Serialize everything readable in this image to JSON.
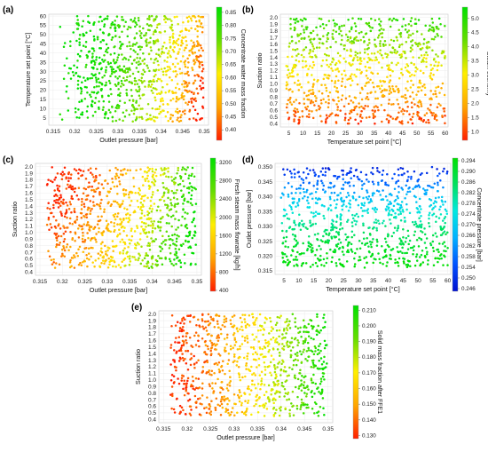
{
  "chart_data": [
    {
      "panel": "(a)",
      "type": "scatter",
      "xlabel": "Outlet pressure [bar]",
      "ylabel": "Temperature set point [°C]",
      "xlim": [
        0.314,
        0.351
      ],
      "ylim": [
        1,
        61
      ],
      "xticks": [
        "0.315",
        "0.32",
        "0.325",
        "0.33",
        "0.335",
        "0.34",
        "0.345",
        "0.35"
      ],
      "yticks": [
        "5",
        "10",
        "15",
        "20",
        "25",
        "30",
        "35",
        "40",
        "45",
        "50",
        "55",
        "60"
      ],
      "colorbar": {
        "label": "Concentrate water mass fraction",
        "range": [
          0.36,
          0.87
        ],
        "ticks": [
          "0.40",
          "0.45",
          "0.50",
          "0.55",
          "0.60",
          "0.65",
          "0.70",
          "0.75",
          "0.80",
          "0.85"
        ],
        "colors": [
          "#ff1e00",
          "#ffa500",
          "#ffee00",
          "#66dd00",
          "#00e000"
        ]
      },
      "points": {
        "count": 900,
        "x_range": [
          0.3165,
          0.3498
        ],
        "y_range": [
          3,
          60
        ],
        "seed": 11,
        "trend": "color decreases with outlet pressure and increases with temperature set point"
      }
    },
    {
      "panel": "(b)",
      "type": "scatter",
      "xlabel": "Temperature set point [°C]",
      "ylabel": "Suction ratio",
      "xlim": [
        2,
        61
      ],
      "ylim": [
        0.35,
        2.05
      ],
      "xticks": [
        "5",
        "10",
        "15",
        "20",
        "25",
        "30",
        "35",
        "40",
        "45",
        "50",
        "55",
        "60"
      ],
      "yticks": [
        "0.4",
        "0.5",
        "0.6",
        "0.7",
        "0.8",
        "0.9",
        "1.0",
        "1.1",
        "1.2",
        "1.3",
        "1.4",
        "1.5",
        "1.6",
        "1.7",
        "1.8",
        "1.9",
        "2.0"
      ],
      "colorbar": {
        "label": "Steam economy",
        "range": [
          0.7,
          5.4
        ],
        "ticks": [
          "1.0",
          "1.5",
          "2.0",
          "2.5",
          "3.0",
          "3.5",
          "4.0",
          "4.5",
          "5.0"
        ],
        "colors": [
          "#ff1e00",
          "#ffa500",
          "#ffee00",
          "#66dd00",
          "#00e000"
        ]
      },
      "points": {
        "count": 900,
        "x_range": [
          4,
          60
        ],
        "y_range": [
          0.4,
          2.0
        ],
        "seed": 23,
        "trend": "color increases with suction ratio"
      }
    },
    {
      "panel": "(c)",
      "type": "scatter",
      "xlabel": "Outlet pressure [bar]",
      "ylabel": "Suction ratio",
      "xlim": [
        0.314,
        0.351
      ],
      "ylim": [
        0.35,
        2.05
      ],
      "xticks": [
        "0.315",
        "0.32",
        "0.325",
        "0.33",
        "0.335",
        "0.34",
        "0.345",
        "0.35"
      ],
      "yticks": [
        "0.4",
        "0.5",
        "0.6",
        "0.7",
        "0.8",
        "0.9",
        "1.0",
        "1.1",
        "1.2",
        "1.3",
        "1.4",
        "1.5",
        "1.6",
        "1.7",
        "1.8",
        "1.9",
        "2.0"
      ],
      "colorbar": {
        "label": "Fresh steam mass flowrate [kg/h]",
        "range": [
          380,
          3300
        ],
        "ticks": [
          "400",
          "800",
          "1200",
          "1600",
          "2000",
          "2400",
          "2800",
          "3200"
        ],
        "colors": [
          "#ff1e00",
          "#ffa500",
          "#ffee00",
          "#66dd00",
          "#00e000"
        ]
      },
      "points": {
        "count": 900,
        "x_range": [
          0.3165,
          0.3498
        ],
        "y_range": [
          0.45,
          2.0
        ],
        "seed": 37,
        "trend": "color increases with outlet pressure and decreases with suction ratio"
      }
    },
    {
      "panel": "(d)",
      "type": "scatter",
      "xlabel": "Temperature set point [°C]",
      "ylabel": "Outlet pressure [bar]",
      "xlim": [
        2,
        61
      ],
      "ylim": [
        0.3138,
        0.3512
      ],
      "xticks": [
        "5",
        "10",
        "15",
        "20",
        "25",
        "30",
        "35",
        "40",
        "45",
        "50",
        "55",
        "60"
      ],
      "yticks": [
        "0.315",
        "0.320",
        "0.325",
        "0.330",
        "0.335",
        "0.340",
        "0.345",
        "0.350"
      ],
      "colorbar": {
        "label": "Concentrate pressure [bar]",
        "range": [
          0.245,
          0.295
        ],
        "ticks": [
          "0.246",
          "0.250",
          "0.254",
          "0.258",
          "0.262",
          "0.266",
          "0.270",
          "0.274",
          "0.278",
          "0.282",
          "0.286",
          "0.290",
          "0.294"
        ],
        "colors": [
          "#0010d0",
          "#0050ff",
          "#00b0ff",
          "#00e8e0",
          "#00e060",
          "#00e000"
        ]
      },
      "points": {
        "count": 900,
        "x_range": [
          4,
          60
        ],
        "y_range": [
          0.316,
          0.35
        ],
        "seed": 53,
        "trend": "color decreases with outlet pressure"
      }
    },
    {
      "panel": "(e)",
      "type": "scatter",
      "xlabel": "Outlet pressure [bar]",
      "ylabel": "Suction ratio",
      "xlim": [
        0.314,
        0.351
      ],
      "ylim": [
        0.35,
        2.05
      ],
      "xticks": [
        "0.315",
        "0.32",
        "0.325",
        "0.33",
        "0.335",
        "0.34",
        "0.345",
        "0.35"
      ],
      "yticks": [
        "0.4",
        "0.5",
        "0.6",
        "0.7",
        "0.8",
        "0.9",
        "1.0",
        "1.1",
        "1.2",
        "1.3",
        "1.4",
        "1.5",
        "1.6",
        "1.7",
        "1.8",
        "1.9",
        "2.0"
      ],
      "colorbar": {
        "label": "Solid mass fraction after FFE1",
        "range": [
          0.128,
          0.213
        ],
        "ticks": [
          "0.130",
          "0.140",
          "0.150",
          "0.160",
          "0.170",
          "0.180",
          "0.190",
          "0.200",
          "0.210"
        ],
        "colors": [
          "#ff1e00",
          "#ffa500",
          "#ffee00",
          "#66dd00",
          "#00e000"
        ]
      },
      "points": {
        "count": 900,
        "x_range": [
          0.3165,
          0.3498
        ],
        "y_range": [
          0.45,
          2.0
        ],
        "seed": 71,
        "trend": "color increases with outlet pressure"
      }
    }
  ]
}
